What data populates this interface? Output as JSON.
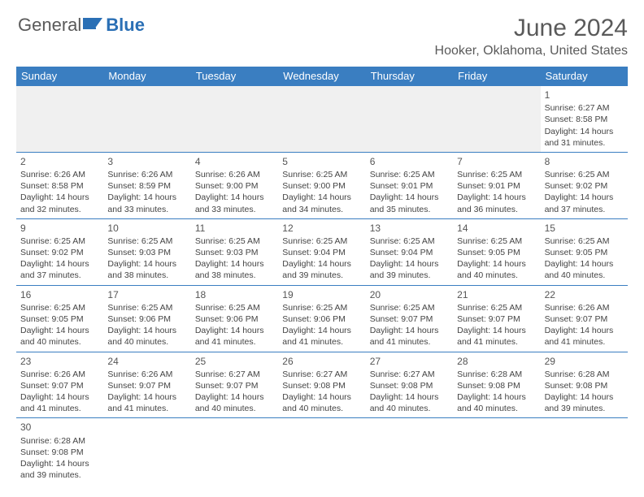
{
  "logo": {
    "part1": "General",
    "part2": "Blue"
  },
  "title": "June 2024",
  "subtitle": "Hooker, Oklahoma, United States",
  "weekdays": [
    "Sunday",
    "Monday",
    "Tuesday",
    "Wednesday",
    "Thursday",
    "Friday",
    "Saturday"
  ],
  "colors": {
    "header_bg": "#3a7ec1",
    "header_fg": "#ffffff",
    "blank_bg": "#f0f0f0",
    "border": "#3a7ec1",
    "title_color": "#5a5a5a"
  },
  "weeks": [
    [
      {
        "blank": true
      },
      {
        "blank": true
      },
      {
        "blank": true
      },
      {
        "blank": true
      },
      {
        "blank": true
      },
      {
        "blank": true
      },
      {
        "n": "1",
        "sunrise": "Sunrise: 6:27 AM",
        "sunset": "Sunset: 8:58 PM",
        "d1": "Daylight: 14 hours",
        "d2": "and 31 minutes."
      }
    ],
    [
      {
        "n": "2",
        "sunrise": "Sunrise: 6:26 AM",
        "sunset": "Sunset: 8:58 PM",
        "d1": "Daylight: 14 hours",
        "d2": "and 32 minutes."
      },
      {
        "n": "3",
        "sunrise": "Sunrise: 6:26 AM",
        "sunset": "Sunset: 8:59 PM",
        "d1": "Daylight: 14 hours",
        "d2": "and 33 minutes."
      },
      {
        "n": "4",
        "sunrise": "Sunrise: 6:26 AM",
        "sunset": "Sunset: 9:00 PM",
        "d1": "Daylight: 14 hours",
        "d2": "and 33 minutes."
      },
      {
        "n": "5",
        "sunrise": "Sunrise: 6:25 AM",
        "sunset": "Sunset: 9:00 PM",
        "d1": "Daylight: 14 hours",
        "d2": "and 34 minutes."
      },
      {
        "n": "6",
        "sunrise": "Sunrise: 6:25 AM",
        "sunset": "Sunset: 9:01 PM",
        "d1": "Daylight: 14 hours",
        "d2": "and 35 minutes."
      },
      {
        "n": "7",
        "sunrise": "Sunrise: 6:25 AM",
        "sunset": "Sunset: 9:01 PM",
        "d1": "Daylight: 14 hours",
        "d2": "and 36 minutes."
      },
      {
        "n": "8",
        "sunrise": "Sunrise: 6:25 AM",
        "sunset": "Sunset: 9:02 PM",
        "d1": "Daylight: 14 hours",
        "d2": "and 37 minutes."
      }
    ],
    [
      {
        "n": "9",
        "sunrise": "Sunrise: 6:25 AM",
        "sunset": "Sunset: 9:02 PM",
        "d1": "Daylight: 14 hours",
        "d2": "and 37 minutes."
      },
      {
        "n": "10",
        "sunrise": "Sunrise: 6:25 AM",
        "sunset": "Sunset: 9:03 PM",
        "d1": "Daylight: 14 hours",
        "d2": "and 38 minutes."
      },
      {
        "n": "11",
        "sunrise": "Sunrise: 6:25 AM",
        "sunset": "Sunset: 9:03 PM",
        "d1": "Daylight: 14 hours",
        "d2": "and 38 minutes."
      },
      {
        "n": "12",
        "sunrise": "Sunrise: 6:25 AM",
        "sunset": "Sunset: 9:04 PM",
        "d1": "Daylight: 14 hours",
        "d2": "and 39 minutes."
      },
      {
        "n": "13",
        "sunrise": "Sunrise: 6:25 AM",
        "sunset": "Sunset: 9:04 PM",
        "d1": "Daylight: 14 hours",
        "d2": "and 39 minutes."
      },
      {
        "n": "14",
        "sunrise": "Sunrise: 6:25 AM",
        "sunset": "Sunset: 9:05 PM",
        "d1": "Daylight: 14 hours",
        "d2": "and 40 minutes."
      },
      {
        "n": "15",
        "sunrise": "Sunrise: 6:25 AM",
        "sunset": "Sunset: 9:05 PM",
        "d1": "Daylight: 14 hours",
        "d2": "and 40 minutes."
      }
    ],
    [
      {
        "n": "16",
        "sunrise": "Sunrise: 6:25 AM",
        "sunset": "Sunset: 9:05 PM",
        "d1": "Daylight: 14 hours",
        "d2": "and 40 minutes."
      },
      {
        "n": "17",
        "sunrise": "Sunrise: 6:25 AM",
        "sunset": "Sunset: 9:06 PM",
        "d1": "Daylight: 14 hours",
        "d2": "and 40 minutes."
      },
      {
        "n": "18",
        "sunrise": "Sunrise: 6:25 AM",
        "sunset": "Sunset: 9:06 PM",
        "d1": "Daylight: 14 hours",
        "d2": "and 41 minutes."
      },
      {
        "n": "19",
        "sunrise": "Sunrise: 6:25 AM",
        "sunset": "Sunset: 9:06 PM",
        "d1": "Daylight: 14 hours",
        "d2": "and 41 minutes."
      },
      {
        "n": "20",
        "sunrise": "Sunrise: 6:25 AM",
        "sunset": "Sunset: 9:07 PM",
        "d1": "Daylight: 14 hours",
        "d2": "and 41 minutes."
      },
      {
        "n": "21",
        "sunrise": "Sunrise: 6:25 AM",
        "sunset": "Sunset: 9:07 PM",
        "d1": "Daylight: 14 hours",
        "d2": "and 41 minutes."
      },
      {
        "n": "22",
        "sunrise": "Sunrise: 6:26 AM",
        "sunset": "Sunset: 9:07 PM",
        "d1": "Daylight: 14 hours",
        "d2": "and 41 minutes."
      }
    ],
    [
      {
        "n": "23",
        "sunrise": "Sunrise: 6:26 AM",
        "sunset": "Sunset: 9:07 PM",
        "d1": "Daylight: 14 hours",
        "d2": "and 41 minutes."
      },
      {
        "n": "24",
        "sunrise": "Sunrise: 6:26 AM",
        "sunset": "Sunset: 9:07 PM",
        "d1": "Daylight: 14 hours",
        "d2": "and 41 minutes."
      },
      {
        "n": "25",
        "sunrise": "Sunrise: 6:27 AM",
        "sunset": "Sunset: 9:07 PM",
        "d1": "Daylight: 14 hours",
        "d2": "and 40 minutes."
      },
      {
        "n": "26",
        "sunrise": "Sunrise: 6:27 AM",
        "sunset": "Sunset: 9:08 PM",
        "d1": "Daylight: 14 hours",
        "d2": "and 40 minutes."
      },
      {
        "n": "27",
        "sunrise": "Sunrise: 6:27 AM",
        "sunset": "Sunset: 9:08 PM",
        "d1": "Daylight: 14 hours",
        "d2": "and 40 minutes."
      },
      {
        "n": "28",
        "sunrise": "Sunrise: 6:28 AM",
        "sunset": "Sunset: 9:08 PM",
        "d1": "Daylight: 14 hours",
        "d2": "and 40 minutes."
      },
      {
        "n": "29",
        "sunrise": "Sunrise: 6:28 AM",
        "sunset": "Sunset: 9:08 PM",
        "d1": "Daylight: 14 hours",
        "d2": "and 39 minutes."
      }
    ],
    [
      {
        "n": "30",
        "sunrise": "Sunrise: 6:28 AM",
        "sunset": "Sunset: 9:08 PM",
        "d1": "Daylight: 14 hours",
        "d2": "and 39 minutes."
      },
      {
        "blank": true
      },
      {
        "blank": true
      },
      {
        "blank": true
      },
      {
        "blank": true
      },
      {
        "blank": true
      },
      {
        "blank": true
      }
    ]
  ]
}
